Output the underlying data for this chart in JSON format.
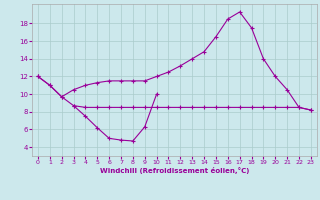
{
  "xlabel": "Windchill (Refroidissement éolien,°C)",
  "background_color": "#cce8ec",
  "grid_color": "#aacccc",
  "line_color": "#990099",
  "x_ticks": [
    0,
    1,
    2,
    3,
    4,
    5,
    6,
    7,
    8,
    9,
    10,
    11,
    12,
    13,
    14,
    15,
    16,
    17,
    18,
    19,
    20,
    21,
    22,
    23
  ],
  "y_ticks": [
    4,
    6,
    8,
    10,
    12,
    14,
    16,
    18
  ],
  "ylim": [
    3.0,
    20.2
  ],
  "xlim": [
    -0.5,
    23.5
  ],
  "line1_x": [
    0,
    1,
    2,
    3,
    4,
    5,
    6,
    7,
    8,
    9,
    10
  ],
  "line1_y": [
    12,
    11,
    9.7,
    8.7,
    7.5,
    6.2,
    5.0,
    4.8,
    4.7,
    6.3,
    10.0
  ],
  "line2_x": [
    0,
    1,
    2,
    3,
    4,
    5,
    6,
    7,
    8,
    9,
    10,
    11,
    12,
    13,
    14,
    15,
    16,
    17,
    18,
    19,
    20,
    21,
    22,
    23
  ],
  "line2_y": [
    12,
    11,
    9.7,
    10.5,
    11.0,
    11.3,
    11.5,
    11.5,
    11.5,
    11.5,
    12.0,
    12.5,
    13.2,
    14.0,
    14.8,
    16.5,
    18.5,
    19.3,
    17.5,
    14.0,
    12.0,
    10.5,
    8.5,
    8.2
  ],
  "line3_x": [
    3,
    4,
    5,
    6,
    7,
    8,
    9,
    10,
    11,
    12,
    13,
    14,
    15,
    16,
    17,
    18,
    19,
    20,
    21,
    22,
    23
  ],
  "line3_y": [
    8.7,
    8.5,
    8.5,
    8.5,
    8.5,
    8.5,
    8.5,
    8.5,
    8.5,
    8.5,
    8.5,
    8.5,
    8.5,
    8.5,
    8.5,
    8.5,
    8.5,
    8.5,
    8.5,
    8.5,
    8.2
  ]
}
